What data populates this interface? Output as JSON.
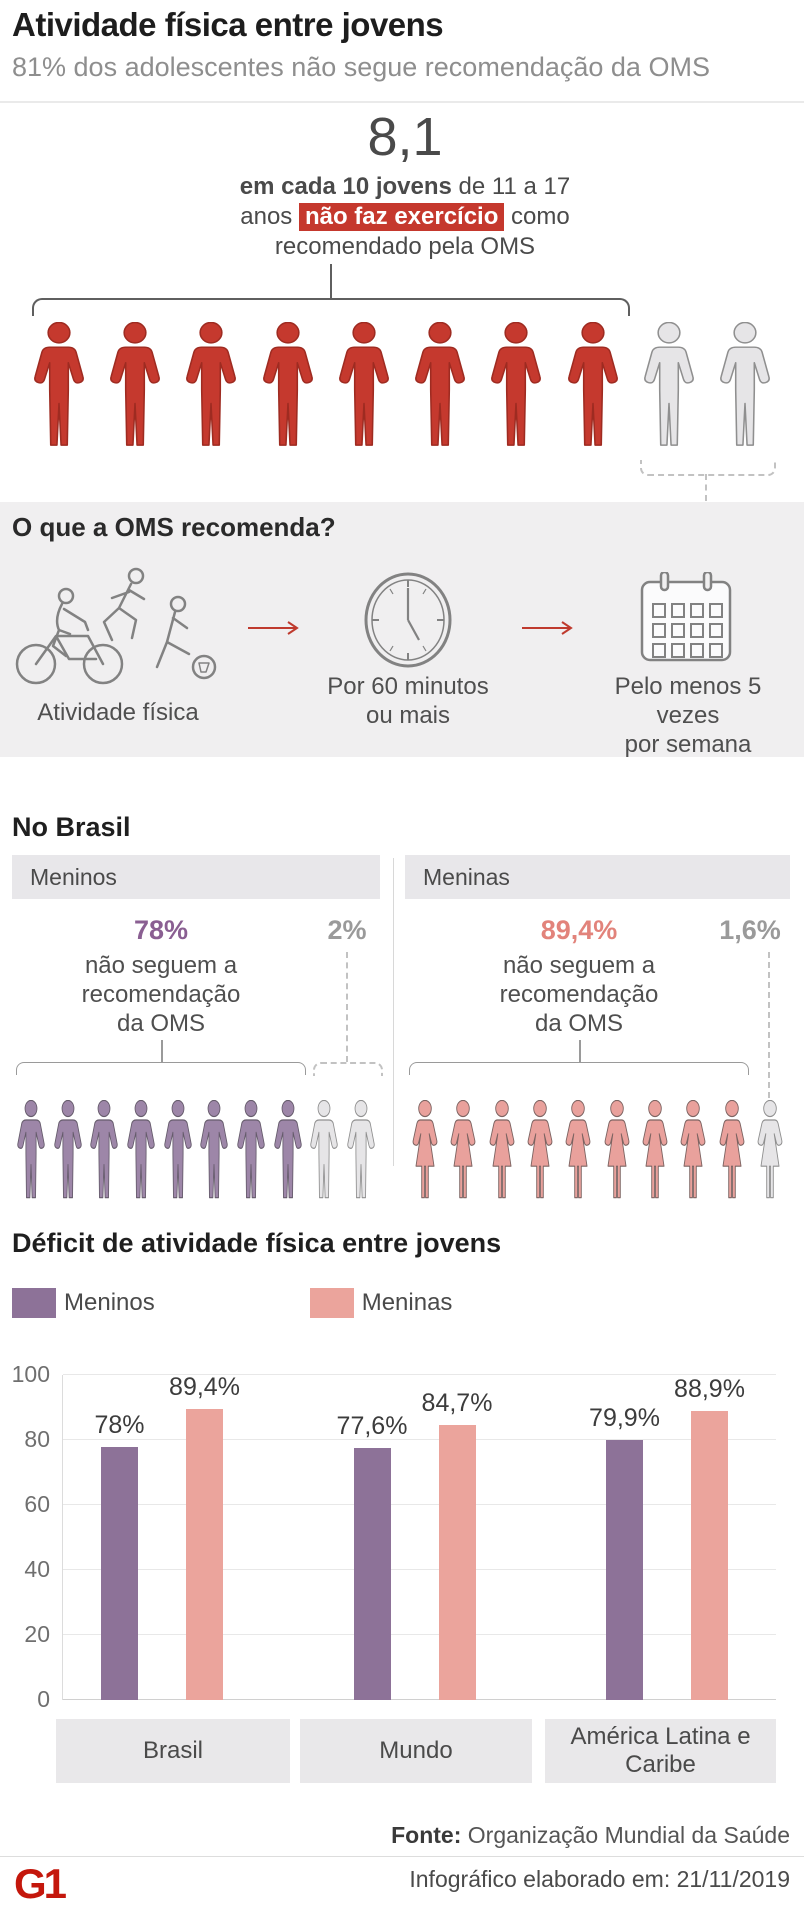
{
  "colors": {
    "red": "#c5392e",
    "red_stroke": "#9e2b21",
    "gray_fill": "#e6e5e7",
    "gray_stroke": "#8f8f8f",
    "logo_red": "#c4170c",
    "arrow_red": "#bf3a2e"
  },
  "header": {
    "title": "Atividade física entre jovens",
    "subtitle": "81% dos adolescentes não segue recomendação da OMS"
  },
  "intro": {
    "big_number": "8,1",
    "line1_bold": "em cada 10 jovens",
    "line1_rest": " de 11 a 17",
    "line2_pre": "anos ",
    "line2_highlight": "não faz exercício",
    "line2_post": " como",
    "line3": "recomendado pela OMS",
    "red_count": 8,
    "gray_count": 2
  },
  "oms": {
    "title": "O que a OMS recomenda?",
    "items": [
      {
        "icon": "physical-activity-icons",
        "line1": "Atividade física",
        "line2": ""
      },
      {
        "icon": "clock-icon",
        "line1": "Por 60 minutos",
        "line2": "ou mais"
      },
      {
        "icon": "calendar-icon",
        "line1": "Pelo menos 5 vezes",
        "line2": "por semana"
      }
    ]
  },
  "brasil": {
    "title": "No Brasil",
    "panels": [
      {
        "header": "Meninos",
        "shape": "male",
        "pct": "78%",
        "pct_color": "#8a5f92",
        "desc_lines": [
          "não seguem a",
          "recomendação",
          "da OMS"
        ],
        "other_pct": "2%",
        "colored_count": 8,
        "gray_count": 2,
        "fill": "#9d86a8",
        "stroke": "#655b6b",
        "fig_w": 34
      },
      {
        "header": "Meninas",
        "shape": "female",
        "pct": "89,4%",
        "pct_color": "#e2837b",
        "desc_lines": [
          "não seguem a",
          "recomendação",
          "da OMS"
        ],
        "other_pct": "1,6%",
        "colored_count": 9,
        "gray_count": 1,
        "fill": "#e9a19c",
        "stroke": "#7c6361",
        "fig_w": 36
      }
    ]
  },
  "chart_data": {
    "type": "bar",
    "title": "Déficit de atividade física entre jovens",
    "categories": [
      "Brasil",
      "Mundo",
      "América Latina e Caribe"
    ],
    "series": [
      {
        "name": "Meninos",
        "color": "#8d7298",
        "values": [
          78,
          77.6,
          79.9
        ],
        "labels": [
          "78%",
          "77,6%",
          "79,9%"
        ]
      },
      {
        "name": "Meninas",
        "color": "#eba49c",
        "values": [
          89.4,
          84.7,
          88.9
        ],
        "labels": [
          "89,4%",
          "84,7%",
          "88,9%"
        ]
      }
    ],
    "xlabel": "",
    "ylabel": "",
    "ylim": [
      0,
      100
    ],
    "yticks": [
      0,
      20,
      40,
      60,
      80,
      100
    ],
    "grid": true,
    "legend_position": "top"
  },
  "footer": {
    "source_label": "Fonte:",
    "source_text": " Organização Mundial da Saúde",
    "credit": "Infográfico elaborado em: 21/11/2019",
    "logo": "G1"
  }
}
